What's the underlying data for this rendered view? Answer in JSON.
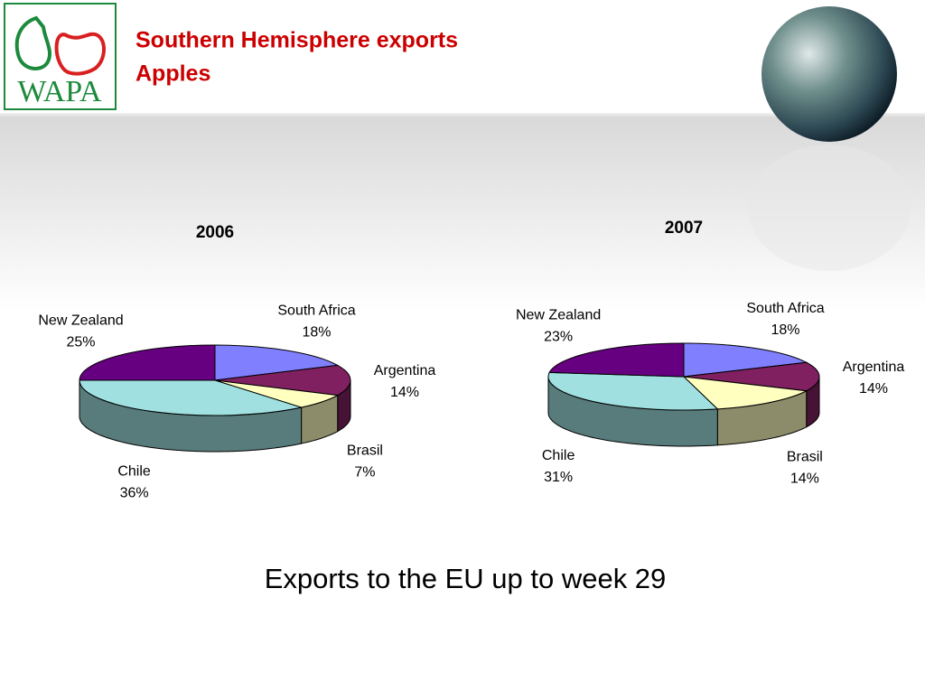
{
  "header": {
    "logo": "WAPA",
    "title_line1": "Southern Hemisphere exports",
    "title_line2": "Apples"
  },
  "chart_data": [
    {
      "type": "pie",
      "title": "2006",
      "categories": [
        "South Africa",
        "Argentina",
        "Brasil",
        "Chile",
        "New Zealand"
      ],
      "values": [
        18,
        14,
        7,
        36,
        25
      ],
      "value_labels": [
        "18%",
        "14%",
        "7%",
        "36%",
        "25%"
      ],
      "colors": [
        "#8080ff",
        "#802060",
        "#ffffc0",
        "#a0e0e0",
        "#660080"
      ]
    },
    {
      "type": "pie",
      "title": "2007",
      "categories": [
        "South Africa",
        "Argentina",
        "Brasil",
        "Chile",
        "New Zealand"
      ],
      "values": [
        18,
        14,
        14,
        31,
        23
      ],
      "value_labels": [
        "18%",
        "14%",
        "14%",
        "31%",
        "23%"
      ],
      "colors": [
        "#8080ff",
        "#802060",
        "#ffffc0",
        "#a0e0e0",
        "#660080"
      ]
    }
  ],
  "footer": "Exports to the EU up to week 29"
}
